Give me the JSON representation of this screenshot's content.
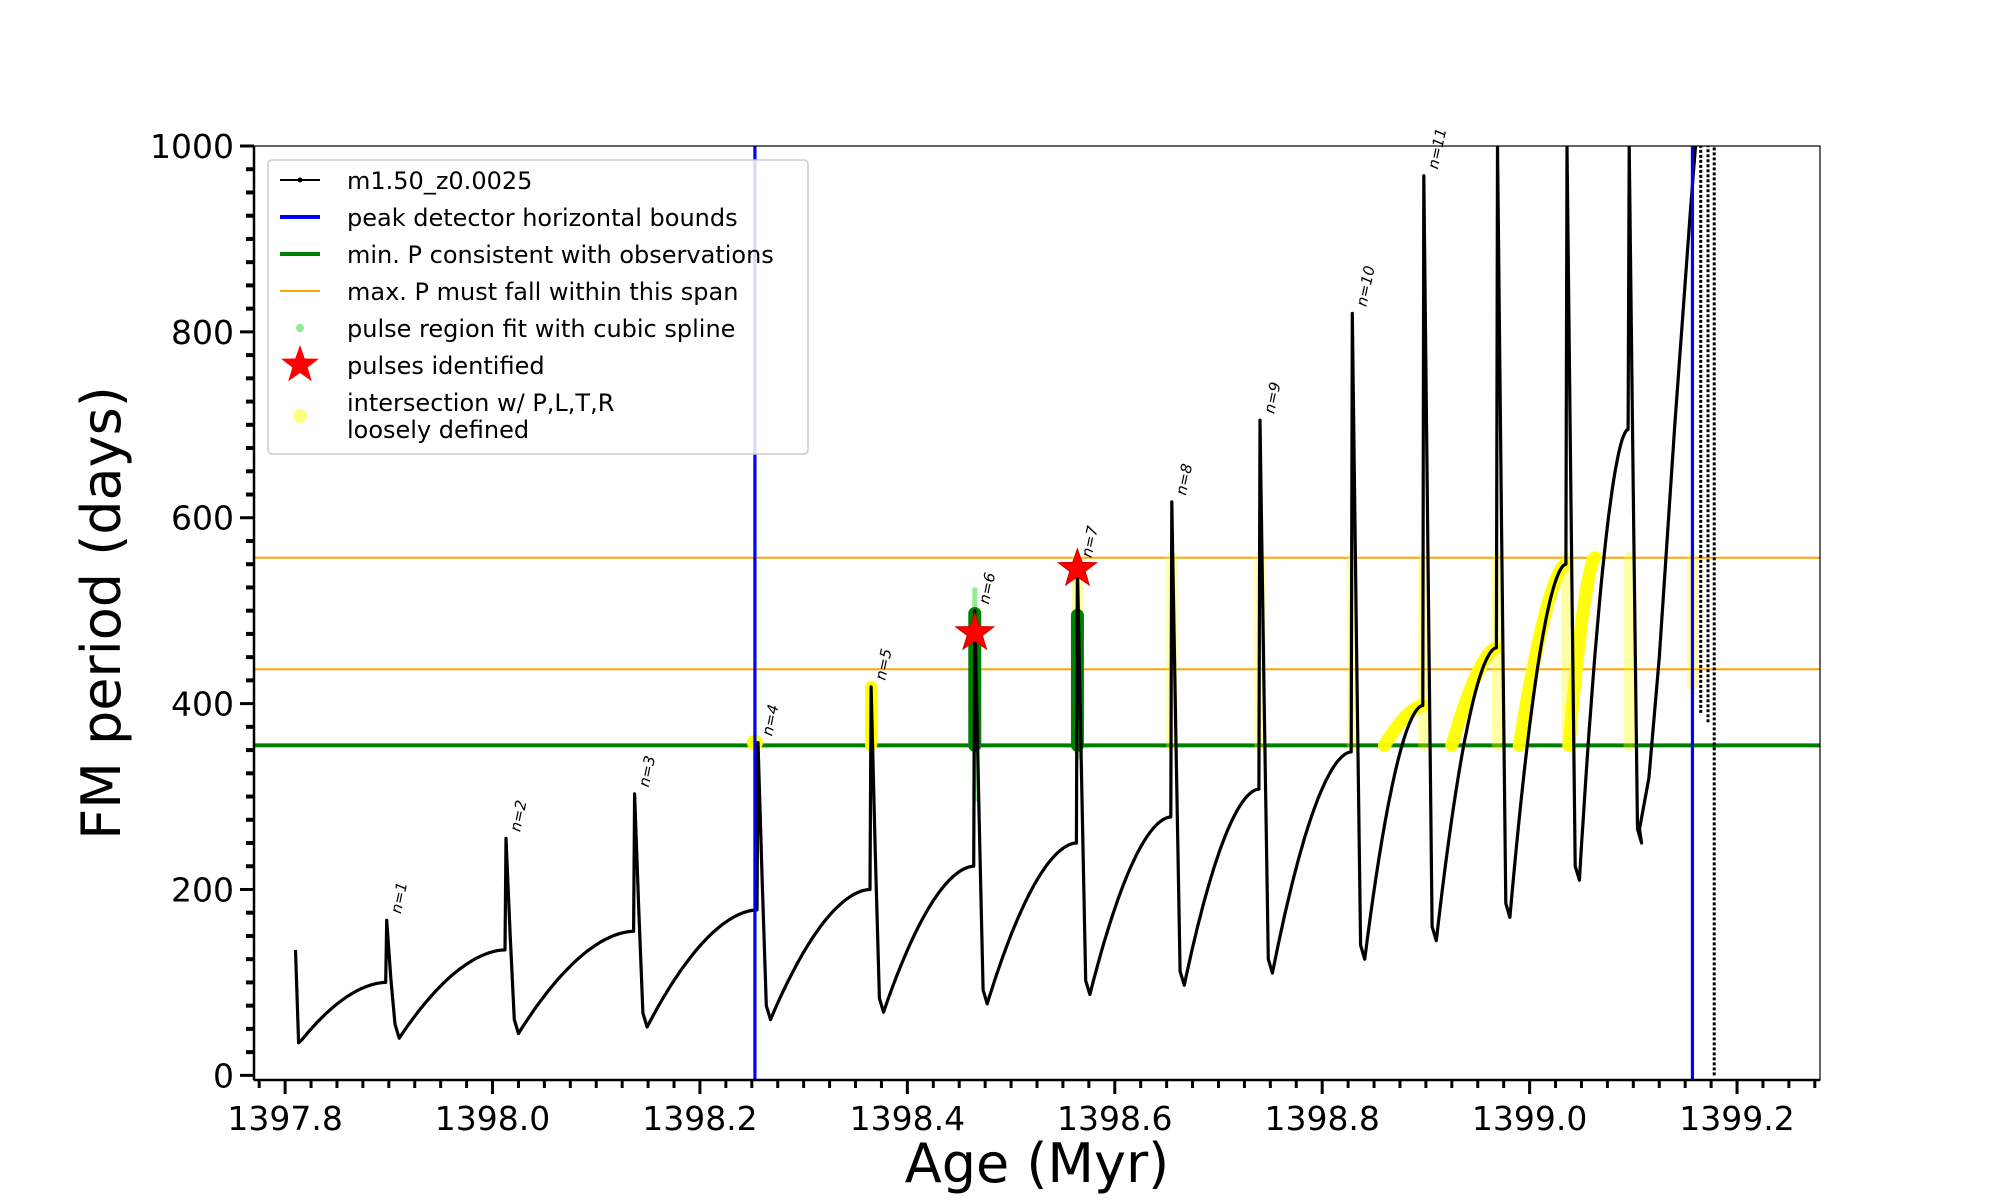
{
  "chart_data": {
    "type": "line",
    "title": "",
    "xlabel": "Age (Myr)",
    "ylabel": "FM period (days)",
    "xlim": [
      1397.77,
      1399.28
    ],
    "ylim": [
      -5,
      1000
    ],
    "x_ticks": [
      1397.8,
      1398.0,
      1398.2,
      1398.4,
      1398.6,
      1398.8,
      1399.0,
      1399.2
    ],
    "x_tick_labels": [
      "1397.8",
      "1398.0",
      "1398.2",
      "1398.4",
      "1398.6",
      "1398.8",
      "1399.0",
      "1399.2"
    ],
    "y_ticks": [
      0,
      200,
      400,
      600,
      800,
      1000
    ],
    "y_tick_labels": [
      "0",
      "200",
      "400",
      "600",
      "800",
      "1000"
    ],
    "grid": false,
    "legend_position": "top-left",
    "colors": {
      "track": "#000000",
      "peak_bounds": "#0000ff",
      "min_period": "#008000",
      "max_period_span": "#ffa500",
      "spline_fit": "#90ee90",
      "pulses": "#ff0000",
      "intersection": "#ffff00"
    },
    "legend": [
      {
        "label": "m1.50_z0.0025",
        "marker": "line-dot",
        "color": "#000000"
      },
      {
        "label": "peak detector horizontal bounds",
        "marker": "line",
        "color": "#0000ff"
      },
      {
        "label": "min. P consistent with observations",
        "marker": "line",
        "color": "#008000"
      },
      {
        "label": "max. P must fall within this span",
        "marker": "line",
        "color": "#ffa500"
      },
      {
        "label": "pulse region fit with cubic spline",
        "marker": "dot",
        "color": "#90ee90"
      },
      {
        "label": "pulses identified",
        "marker": "star",
        "color": "#ff0000"
      },
      {
        "label": "intersection w/ P,L,T,R",
        "marker": "circle",
        "color": "#ffff00"
      },
      {
        "label": "loosely defined",
        "marker": "none",
        "color": "#ffff00"
      }
    ],
    "vertical_lines": {
      "name": "peak detector horizontal bounds",
      "x": [
        1398.253,
        1399.157
      ]
    },
    "horizontal_lines": [
      {
        "name": "min. P consistent with observations",
        "y": 355
      },
      {
        "name": "max. P must fall within this span",
        "y": 557
      },
      {
        "name": "max. P must fall within this span",
        "y": 437
      }
    ],
    "pulse_cycles": [
      {
        "label": "n=1",
        "t_peak": 1397.898,
        "p_min": 40,
        "p_peak": 167,
        "p_end": 100,
        "cycle_end": 1397.897
      },
      {
        "label": "n=2",
        "t_peak": 1398.013,
        "p_min": 45,
        "p_peak": 255,
        "p_end": 135,
        "cycle_end": 1398.012
      },
      {
        "label": "n=3",
        "t_peak": 1398.137,
        "p_min": 52,
        "p_peak": 303,
        "p_end": 155,
        "cycle_end": 1398.136
      },
      {
        "label": "n=4",
        "t_peak": 1398.256,
        "p_min": 60,
        "p_peak": 358,
        "p_end": 178,
        "cycle_end": 1398.255
      },
      {
        "label": "n=5",
        "t_peak": 1398.365,
        "p_min": 68,
        "p_peak": 418,
        "p_end": 200,
        "cycle_end": 1398.364
      },
      {
        "label": "n=6",
        "t_peak": 1398.465,
        "p_min": 77,
        "p_peak": 500,
        "p_end": 225,
        "cycle_end": 1398.464
      },
      {
        "label": "n=7",
        "t_peak": 1398.564,
        "p_min": 87,
        "p_peak": 550,
        "p_end": 250,
        "cycle_end": 1398.563
      },
      {
        "label": "n=8",
        "t_peak": 1398.655,
        "p_min": 97,
        "p_peak": 617,
        "p_end": 278,
        "cycle_end": 1398.654
      },
      {
        "label": "n=9",
        "t_peak": 1398.74,
        "p_min": 110,
        "p_peak": 705,
        "p_end": 308,
        "cycle_end": 1398.739
      },
      {
        "label": "n=10",
        "t_peak": 1398.829,
        "p_min": 125,
        "p_peak": 820,
        "p_end": 348,
        "cycle_end": 1398.828
      },
      {
        "label": "n=11",
        "t_peak": 1398.898,
        "p_min": 145,
        "p_peak": 968,
        "p_end": 398,
        "cycle_end": 1398.897
      },
      {
        "label": "",
        "t_peak": 1398.969,
        "p_min": 170,
        "p_peak": 1000,
        "p_end": 460,
        "cycle_end": 1398.968
      },
      {
        "label": "",
        "t_peak": 1399.036,
        "p_min": 210,
        "p_peak": 1000,
        "p_end": 550,
        "cycle_end": 1399.035
      },
      {
        "label": "",
        "t_peak": 1399.096,
        "p_min": 250,
        "p_peak": 1000,
        "p_end": 695,
        "cycle_end": 1399.095
      }
    ],
    "track_start": {
      "x": 1397.81,
      "y": 135
    },
    "track_tail": [
      {
        "x": 1399.106,
        "y": 265
      },
      {
        "x": 1399.115,
        "y": 320
      },
      {
        "x": 1399.125,
        "y": 450
      },
      {
        "x": 1399.14,
        "y": 700
      },
      {
        "x": 1399.155,
        "y": 930
      },
      {
        "x": 1399.16,
        "y": 1000
      }
    ],
    "late_spikes": [
      {
        "x": 1399.165,
        "y_min": 390,
        "y_max": 1000
      },
      {
        "x": 1399.172,
        "y_min": 380,
        "y_max": 1000
      },
      {
        "x": 1399.178,
        "y_min": 0,
        "y_max": 1000
      }
    ],
    "pulses_identified": [
      {
        "label": "n=6",
        "x": 1398.465,
        "y": 476
      },
      {
        "label": "n=7",
        "x": 1398.564,
        "y": 545
      }
    ],
    "spline_fit_regions": [
      {
        "x": 1398.465,
        "y_low": 295,
        "y_high": 525
      },
      {
        "x": 1398.564,
        "y_low": 340,
        "y_high": 500
      }
    ],
    "spline_fit_detail": [
      {
        "x": 1398.465,
        "y_low": 355,
        "y_high": 497
      },
      {
        "x": 1398.564,
        "y_low": 355,
        "y_high": 495
      }
    ],
    "intersection_points": [
      {
        "x": 1398.253,
        "y": 358
      }
    ],
    "intersection_columns": [
      {
        "x": 1398.365,
        "y_low": 355,
        "y_high": 418
      },
      {
        "x": 1398.564,
        "y_low": 355,
        "y_high": 555
      },
      {
        "x": 1398.655,
        "y_low": 355,
        "y_high": 557
      },
      {
        "x": 1398.74,
        "y_low": 355,
        "y_high": 557
      },
      {
        "x": 1398.829,
        "y_low": 355,
        "y_high": 557
      },
      {
        "x": 1398.898,
        "y_low": 355,
        "y_high": 557
      },
      {
        "x": 1398.969,
        "y_low": 355,
        "y_high": 557
      },
      {
        "x": 1399.036,
        "y_low": 355,
        "y_high": 557
      },
      {
        "x": 1399.096,
        "y_low": 355,
        "y_high": 557
      },
      {
        "x": 1399.157,
        "y_low": 420,
        "y_high": 557
      }
    ],
    "intersection_arcs": [
      {
        "x_start": 1398.86,
        "x_end": 1398.897,
        "y_start": 355,
        "y_end": 398
      },
      {
        "x_start": 1398.925,
        "x_end": 1398.968,
        "y_start": 355,
        "y_end": 460
      },
      {
        "x_start": 1398.99,
        "x_end": 1399.035,
        "y_start": 355,
        "y_end": 550
      },
      {
        "x_start": 1399.038,
        "x_end": 1399.063,
        "y_start": 355,
        "y_end": 557
      }
    ]
  }
}
